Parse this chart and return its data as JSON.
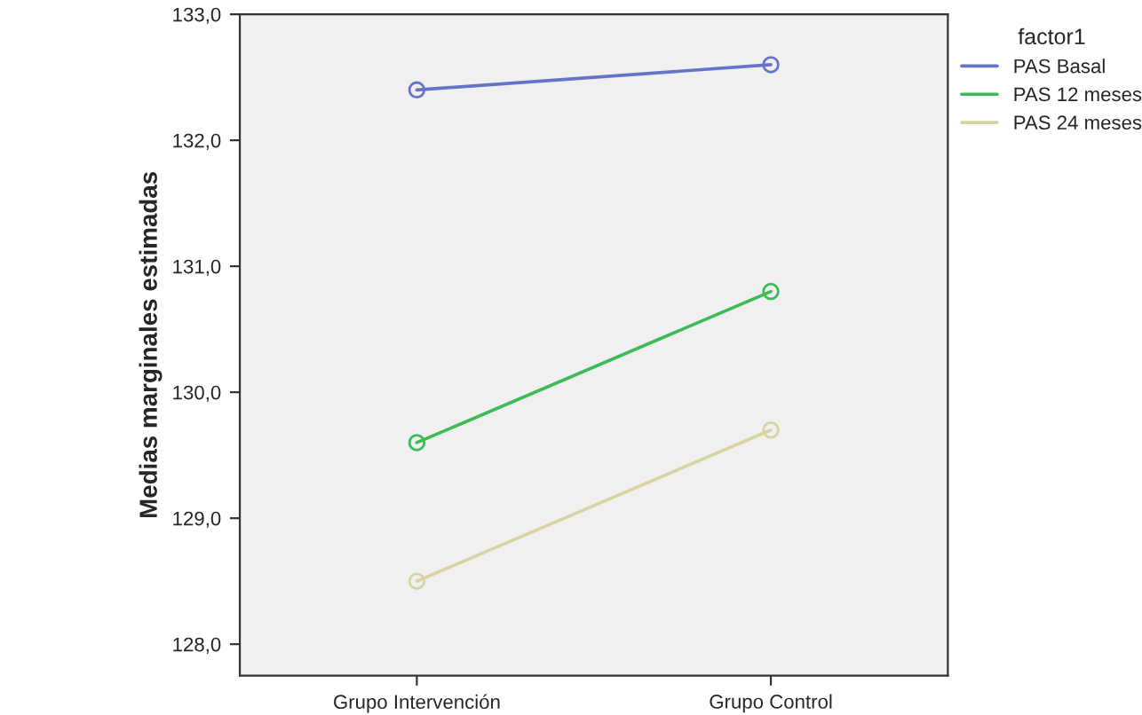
{
  "chart_data": {
    "type": "line",
    "ylabel": "Medias marginales estimadas",
    "legend_title": "factor1",
    "categories": [
      "Grupo Intervención",
      "Grupo Control"
    ],
    "series": [
      {
        "name": "PAS Basal",
        "color": "#6674c8",
        "values": [
          132.4,
          132.6
        ]
      },
      {
        "name": "PAS 12 meses",
        "color": "#3cba54",
        "values": [
          129.6,
          130.8
        ]
      },
      {
        "name": "PAS 24 meses",
        "color": "#d8d4a0",
        "values": [
          128.5,
          129.7
        ]
      }
    ],
    "ylim": [
      127.75,
      133.0
    ],
    "yticks": [
      {
        "value": 128,
        "label": "128,0"
      },
      {
        "value": 129,
        "label": "129,0"
      },
      {
        "value": 130,
        "label": "130,0"
      },
      {
        "value": 131,
        "label": "131,0"
      },
      {
        "value": 132,
        "label": "132,0"
      },
      {
        "value": 133,
        "label": "133,0"
      }
    ],
    "marker": "circle",
    "line_style": "solid",
    "grid": false,
    "legend": "top right"
  }
}
